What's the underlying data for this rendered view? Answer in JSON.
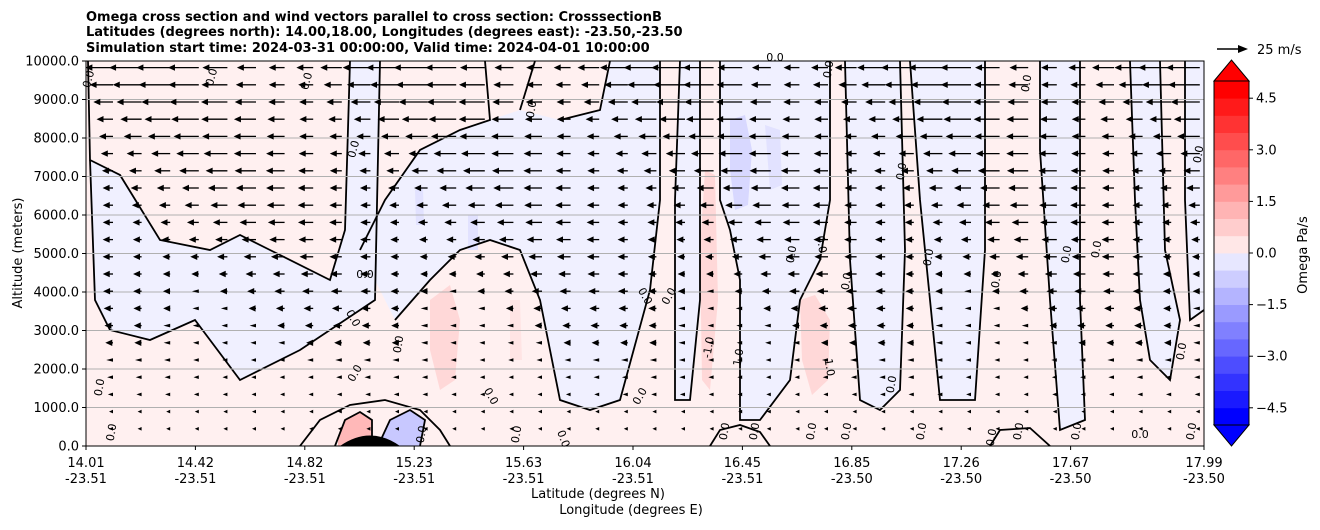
{
  "chart_data": {
    "type": "heatmap",
    "title_lines": [
      "Omega cross section and wind vectors parallel to cross section: CrosssectionB",
      "Latitudes (degrees north): 14.00,18.00, Longitudes (degrees east): -23.50,-23.50",
      "Simulation start time: 2024-03-31 00:00:00, Valid time: 2024-04-01 10:00:00"
    ],
    "ylabel": "Altitude (meters)",
    "xlabel_lat": "Latitude (degrees N)",
    "xlabel_lon": "Longitude (degrees E)",
    "yticks": [
      "0.0",
      "1000.0",
      "2000.0",
      "3000.0",
      "4000.0",
      "5000.0",
      "6000.0",
      "7000.0",
      "8000.0",
      "9000.0",
      "10000.0"
    ],
    "ylim": [
      0,
      10000
    ],
    "xticks": [
      {
        "lat": "14.01",
        "lon": "-23.51"
      },
      {
        "lat": "14.42",
        "lon": "-23.51"
      },
      {
        "lat": "14.82",
        "lon": "-23.51"
      },
      {
        "lat": "15.23",
        "lon": "-23.51"
      },
      {
        "lat": "15.63",
        "lon": "-23.51"
      },
      {
        "lat": "16.04",
        "lon": "-23.51"
      },
      {
        "lat": "16.45",
        "lon": "-23.51"
      },
      {
        "lat": "16.85",
        "lon": "-23.50"
      },
      {
        "lat": "17.26",
        "lon": "-23.50"
      },
      {
        "lat": "17.67",
        "lon": "-23.50"
      },
      {
        "lat": "17.99",
        "lon": "-23.50"
      }
    ],
    "xlim": [
      14.01,
      17.99
    ],
    "colorbar": {
      "label": "Omega Pa/s",
      "ticks": [
        "4.5",
        "3.0",
        "1.5",
        "0.0",
        "−1.5",
        "−3.0",
        "−4.5"
      ],
      "tick_values": [
        4.5,
        3.0,
        1.5,
        0.0,
        -1.5,
        -3.0,
        -4.5
      ],
      "range": [
        -5,
        5
      ],
      "extend": "both"
    },
    "quiver_key": {
      "label": "25 m/s",
      "speed": 25
    },
    "contour_labels": [
      "0.0",
      "0.0",
      "0.0",
      "0.0",
      "0.0",
      "0.0",
      "0.0",
      "0.0",
      "0.0",
      "0.0",
      "0.0",
      "0.0",
      "0.0",
      "0.0",
      "0.0",
      "0.0",
      "0.0",
      "0.0",
      "0.0",
      "0.0",
      "0.0",
      "0.0",
      "0.0",
      "0.0",
      "0.0",
      "0.0",
      "0.0",
      "0.0",
      "0.0",
      "0.0",
      "0.0",
      "0.0",
      "-1.0",
      "1.0",
      "1.0",
      "0.0",
      "0.0",
      "0.0",
      "0.0",
      "0.0",
      "0.0",
      "0.0",
      "0.0",
      "0.0",
      "0.0"
    ],
    "contour_levels": [
      -1.0,
      0.0,
      1.0
    ],
    "colors": {
      "positive": "#ff0000",
      "negative": "#0000ff",
      "positive_light": "#fff0f0",
      "negative_light": "#f0f0ff"
    }
  }
}
